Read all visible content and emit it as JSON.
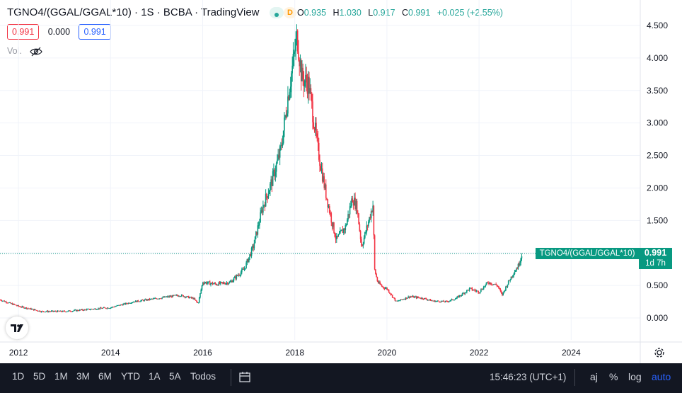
{
  "header": {
    "title": "TGNO4/(GGAL/GGAL*10) · 1S · BCBA · TradingView",
    "badge_d": "D",
    "ohlc": {
      "o_label": "O",
      "o": "0.935",
      "h_label": "H",
      "h": "1.030",
      "l_label": "L",
      "l": "0.917",
      "c_label": "C",
      "c": "0.991",
      "change": "+0.025 (+2.55%)"
    },
    "sub": {
      "box1": "0.991",
      "box2": "0.000",
      "box3": "0.991"
    },
    "vol_label": "Vol."
  },
  "price_tag": {
    "symbol": "TGNO4/(GGAL/GGAL*10)",
    "value": "0.991",
    "countdown": "1d 7h"
  },
  "colors": {
    "up": "#089981",
    "down": "#f23645",
    "accent": "#2962ff",
    "toolbar_bg": "#131722"
  },
  "icons": [
    "eye-off-icon",
    "tradingview-logo-icon",
    "gear-icon",
    "calendar-range-icon"
  ],
  "bottom_bar": {
    "ranges": [
      "1D",
      "5D",
      "1M",
      "3M",
      "6M",
      "YTD",
      "1A",
      "5A",
      "Todos"
    ],
    "time": "15:46:23 (UTC+1)",
    "aj": "aj",
    "pct": "%",
    "log": "log",
    "auto": "auto"
  },
  "chart_data": {
    "type": "candlestick",
    "interval": "1W",
    "title": "",
    "xlabel": "",
    "ylabel": "",
    "x_ticks": [
      "2012",
      "2014",
      "2016",
      "2018",
      "2020",
      "2022",
      "2024"
    ],
    "y_ticks": [
      "0.000",
      "0.500",
      "1.000",
      "1.500",
      "2.000",
      "2.500",
      "3.000",
      "3.500",
      "4.000",
      "4.500"
    ],
    "ylim": [
      -0.05,
      4.65
    ],
    "xlim": [
      2011.6,
      2025.5
    ],
    "grid": true,
    "last_price": 0.991,
    "trend_path": [
      [
        2011.6,
        0.28
      ],
      [
        2012.0,
        0.18
      ],
      [
        2012.5,
        0.1
      ],
      [
        2013.0,
        0.1
      ],
      [
        2013.5,
        0.13
      ],
      [
        2014.0,
        0.16
      ],
      [
        2014.5,
        0.25
      ],
      [
        2015.0,
        0.3
      ],
      [
        2015.5,
        0.35
      ],
      [
        2015.8,
        0.3
      ],
      [
        2015.9,
        0.22
      ],
      [
        2016.0,
        0.55
      ],
      [
        2016.3,
        0.52
      ],
      [
        2016.6,
        0.55
      ],
      [
        2016.9,
        0.75
      ],
      [
        2017.1,
        1.1
      ],
      [
        2017.3,
        1.7
      ],
      [
        2017.5,
        2.1
      ],
      [
        2017.7,
        2.6
      ],
      [
        2017.85,
        3.4
      ],
      [
        2018.0,
        4.1
      ],
      [
        2018.05,
        4.35
      ],
      [
        2018.15,
        3.7
      ],
      [
        2018.3,
        3.6
      ],
      [
        2018.4,
        3.1
      ],
      [
        2018.5,
        2.6
      ],
      [
        2018.65,
        2.0
      ],
      [
        2018.8,
        1.5
      ],
      [
        2018.9,
        1.2
      ],
      [
        2019.1,
        1.4
      ],
      [
        2019.25,
        1.85
      ],
      [
        2019.35,
        1.7
      ],
      [
        2019.45,
        1.1
      ],
      [
        2019.55,
        1.35
      ],
      [
        2019.7,
        1.75
      ],
      [
        2019.73,
        0.75
      ],
      [
        2019.8,
        0.55
      ],
      [
        2019.9,
        0.48
      ],
      [
        2020.0,
        0.45
      ],
      [
        2020.2,
        0.25
      ],
      [
        2020.5,
        0.33
      ],
      [
        2020.8,
        0.3
      ],
      [
        2021.0,
        0.26
      ],
      [
        2021.3,
        0.25
      ],
      [
        2021.5,
        0.3
      ],
      [
        2021.8,
        0.45
      ],
      [
        2022.0,
        0.4
      ],
      [
        2022.2,
        0.55
      ],
      [
        2022.4,
        0.5
      ],
      [
        2022.5,
        0.35
      ],
      [
        2022.6,
        0.5
      ],
      [
        2022.75,
        0.7
      ],
      [
        2022.85,
        0.8
      ],
      [
        2022.93,
        0.99
      ]
    ]
  }
}
